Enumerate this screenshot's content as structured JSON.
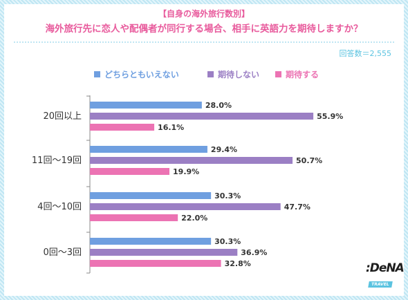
{
  "header": {
    "subtitle": "【自身の海外旅行数別】",
    "title": "海外旅行先に恋人や配偶者が同行する場合、相手に英語力を期待しますか？",
    "respondents": "回答数＝2,555"
  },
  "logo": {
    "main": ":DeNA",
    "sub": "TRAVEL"
  },
  "chart_data": {
    "type": "bar",
    "orientation": "horizontal",
    "categories": [
      "20回以上",
      "11回〜19回",
      "4回〜10回",
      "0回〜3回"
    ],
    "series": [
      {
        "name": "どちらともいえない",
        "color": "#6f9fe0",
        "values": [
          28.0,
          29.4,
          30.3,
          30.3
        ]
      },
      {
        "name": "期待しない",
        "color": "#9b7fc4",
        "values": [
          55.9,
          50.7,
          47.7,
          36.9
        ]
      },
      {
        "name": "期待する",
        "color": "#ec73b3",
        "values": [
          16.1,
          19.9,
          22.0,
          32.8
        ]
      }
    ],
    "value_format": "{v}%",
    "xlim": [
      0,
      100
    ],
    "grid": false,
    "legend": "top"
  }
}
